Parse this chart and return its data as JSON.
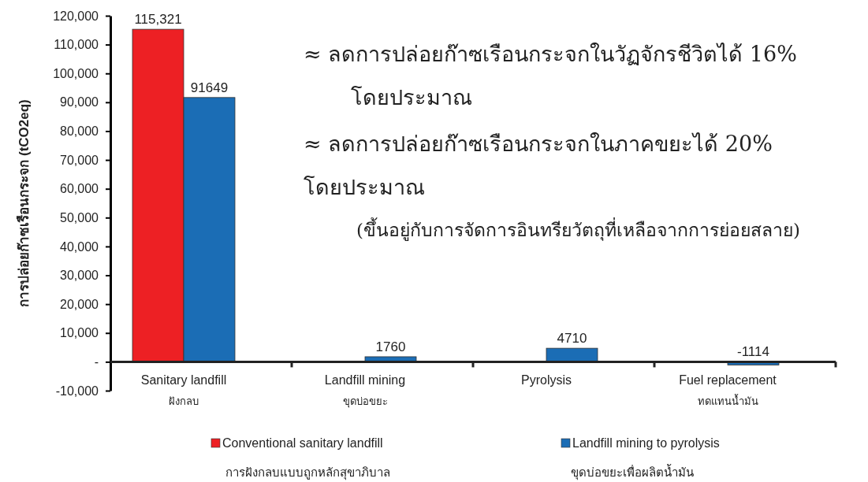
{
  "chart_data": {
    "type": "bar",
    "ylabel": "การปล่อยก๊าซเรือนกระจก (tCO2eq)",
    "categories": [
      "Sanitary landfill\nฝังกลบ",
      "Landfill mining\nขุดบ่อขยะ",
      "Pyrolysis",
      "Fuel replacement\nทดแทนน้ำมัน"
    ],
    "series": [
      {
        "name": "Conventional sanitary landfill",
        "color": "#ed2024",
        "values": [
          115321,
          null,
          null,
          null
        ],
        "value_labels": [
          "115,321",
          null,
          null,
          null
        ]
      },
      {
        "name": "Landfill mining to pyrolysis",
        "color": "#1b6db5",
        "values": [
          91649,
          1760,
          4710,
          -1114
        ],
        "value_labels": [
          "91649",
          "1760",
          "4710",
          "-1114"
        ]
      }
    ],
    "ylim": [
      -10000,
      120000
    ],
    "yticks": [
      {
        "value": -10000,
        "label": "-10,000"
      },
      {
        "value": 0,
        "label": "-"
      },
      {
        "value": 10000,
        "label": "10,000"
      },
      {
        "value": 20000,
        "label": "20,000"
      },
      {
        "value": 30000,
        "label": "30,000"
      },
      {
        "value": 40000,
        "label": "40,000"
      },
      {
        "value": 50000,
        "label": "50,000"
      },
      {
        "value": 60000,
        "label": "60,000"
      },
      {
        "value": 70000,
        "label": "70,000"
      },
      {
        "value": 80000,
        "label": "80,000"
      },
      {
        "value": 90000,
        "label": "90,000"
      },
      {
        "value": 100000,
        "label": "100,000"
      },
      {
        "value": 110000,
        "label": "110,000"
      },
      {
        "value": 120000,
        "label": "120,000"
      }
    ],
    "grid": false,
    "legend": "bottom",
    "annotations": [
      "≈ ลดการปล่อยก๊าซเรือนกระจกในวัฏจักรชีวิตได้ 16%\nโดยประมาณ",
      "≈ ลดการปล่อยก๊าซเรือนกระจกในภาคขยะได้ 20%\nโดยประมาณ",
      "(ขึ้นอยู่กับการจัดการอินทรียวัตถุที่เหลือจากการย่อยสลาย)",
      "การฝังกลบแบบถูกหลักสุขาภิบาล",
      "ขุดบ่อขยะเพื่อผลิตน้ำมัน"
    ]
  }
}
